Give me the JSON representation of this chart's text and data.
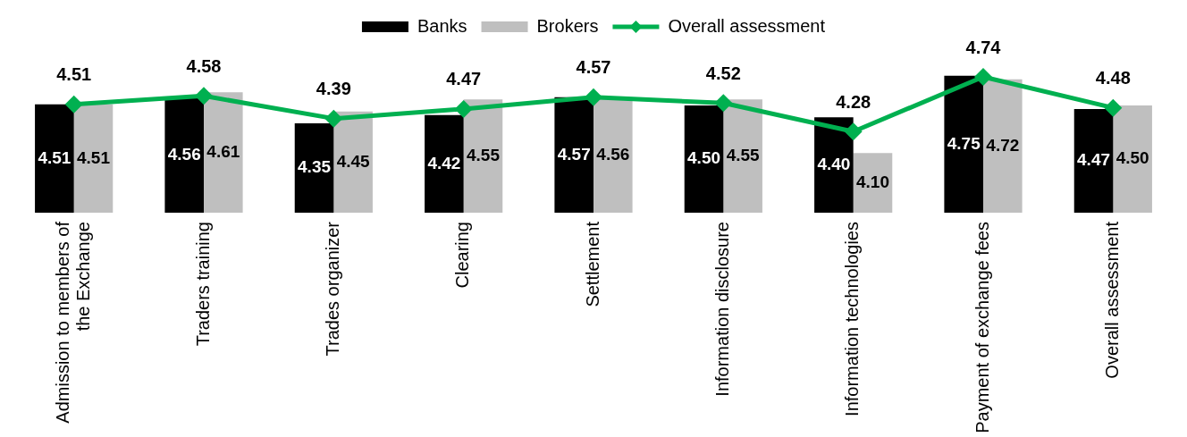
{
  "chart_data": {
    "type": "bar",
    "categories": [
      "Admission to members of the Exchange",
      "Traders training",
      "Trades organizer",
      "Clearing",
      "Settlement",
      "Information disclosure",
      "Information technologies",
      "Payment of exchange fees",
      "Overall assessment"
    ],
    "series": [
      {
        "name": "Banks",
        "color": "#000000",
        "values": [
          4.51,
          4.56,
          4.35,
          4.42,
          4.57,
          4.5,
          4.4,
          4.75,
          4.47
        ],
        "value_labels": [
          "4.51",
          "4.56",
          "4.35",
          "4.42",
          "4.57",
          "4.50",
          "4.40",
          "4.75",
          "4.47"
        ]
      },
      {
        "name": "Brokers",
        "color": "#bfbfbf",
        "values": [
          4.51,
          4.61,
          4.45,
          4.55,
          4.56,
          4.55,
          4.1,
          4.72,
          4.5
        ],
        "value_labels": [
          "4.51",
          "4.61",
          "4.45",
          "4.55",
          "4.56",
          "4.55",
          "4.10",
          "4.72",
          "4.50"
        ]
      },
      {
        "name": "Overall assessment",
        "type": "line",
        "color": "#00b050",
        "values": [
          4.51,
          4.58,
          4.39,
          4.47,
          4.57,
          4.52,
          4.28,
          4.74,
          4.48
        ],
        "value_labels": [
          "4.51",
          "4.58",
          "4.39",
          "4.47",
          "4.57",
          "4.52",
          "4.28",
          "4.74",
          "4.48"
        ]
      }
    ],
    "tick_labels": "x",
    "legend": "top",
    "marker": "diamond",
    "line_style": "solid"
  }
}
